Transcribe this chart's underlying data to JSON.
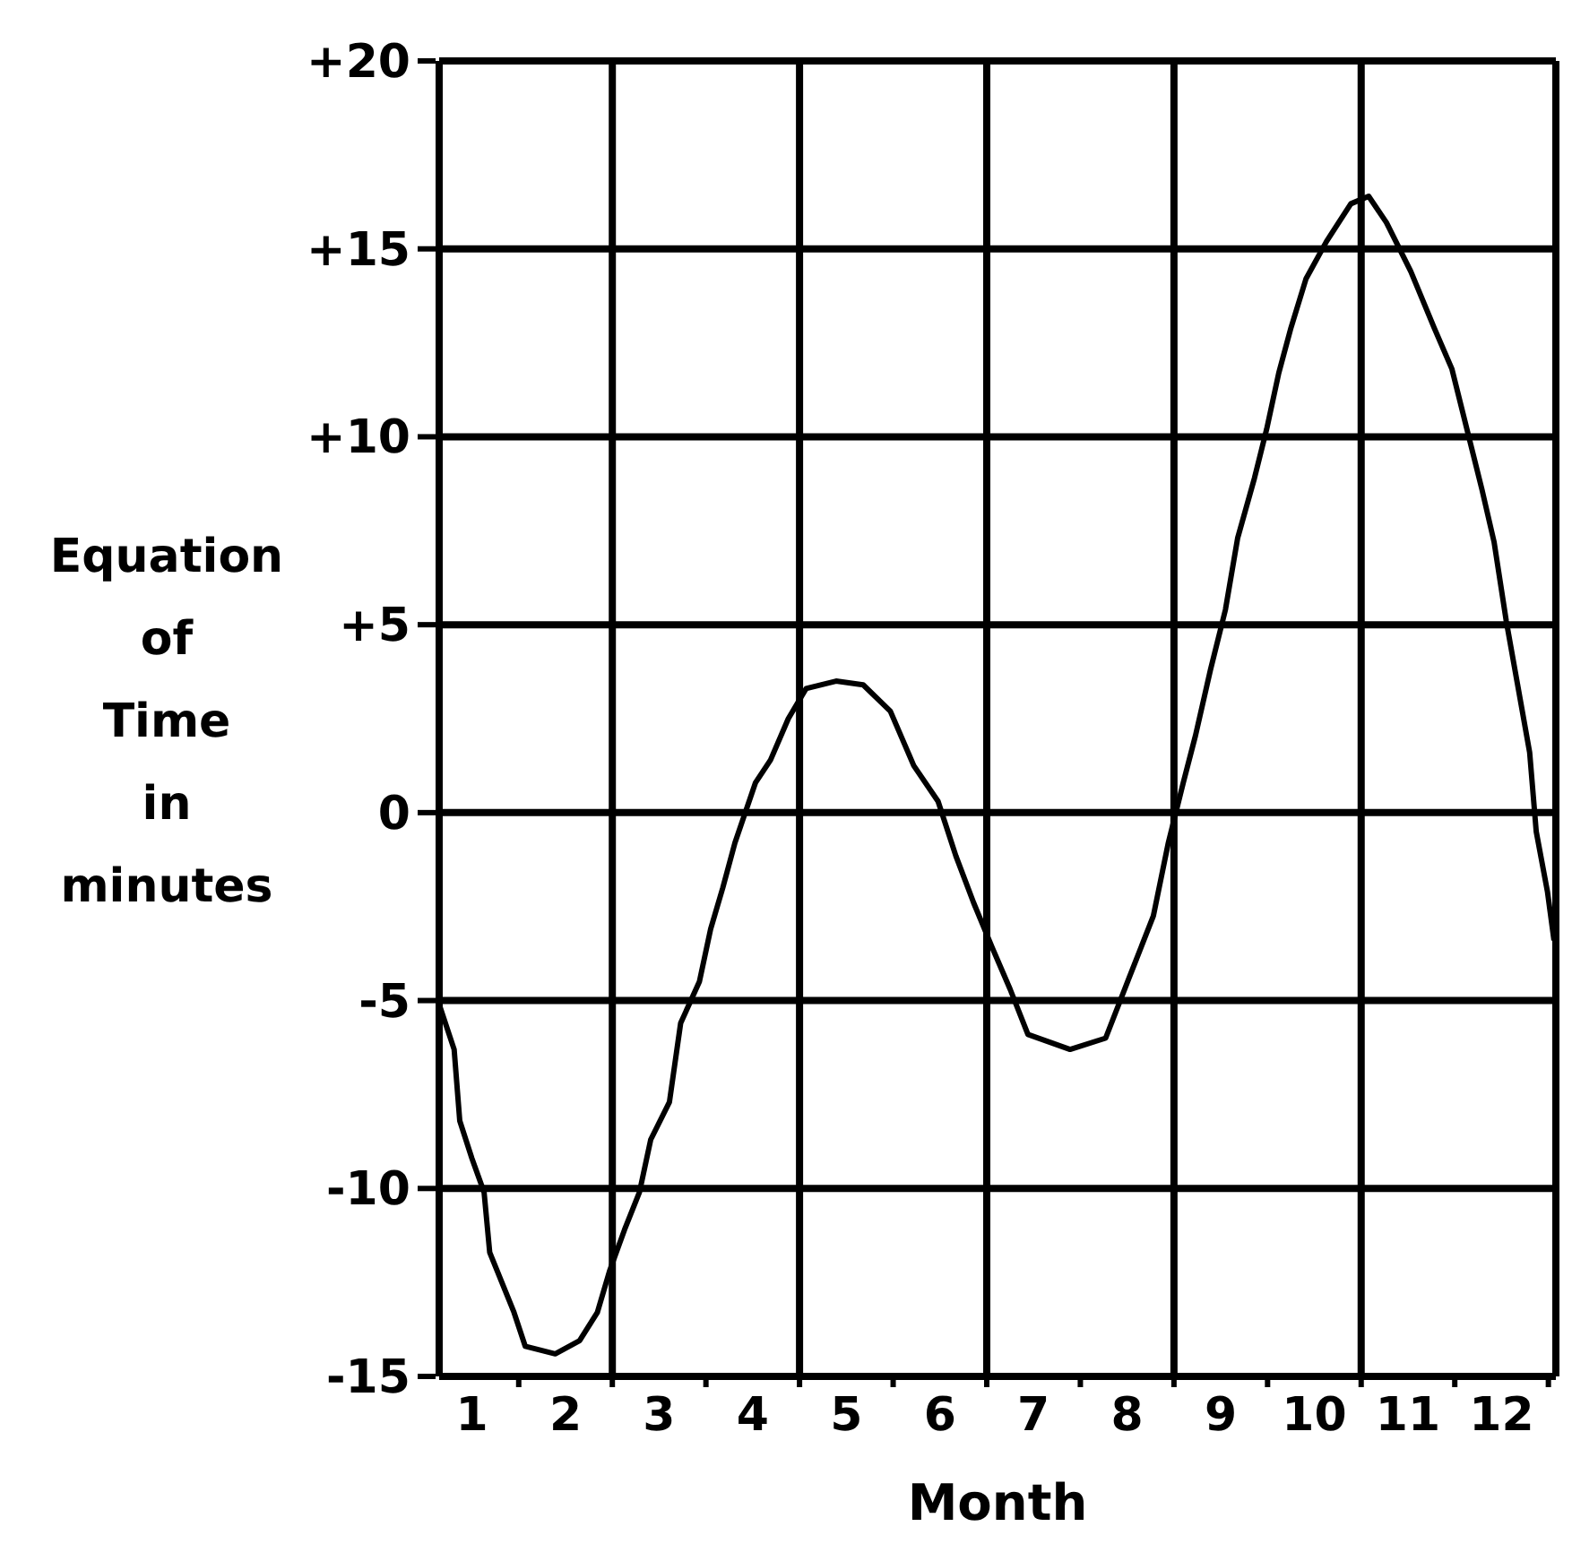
{
  "chart_data": {
    "type": "line",
    "xlabel": "Month",
    "ylabel": "Equation of Time in minutes",
    "x": [
      0.15,
      0.31,
      0.37,
      0.5,
      0.63,
      0.69,
      0.82,
      0.95,
      1.07,
      1.39,
      1.65,
      1.84,
      1.97,
      2.13,
      2.29,
      2.41,
      2.61,
      2.73,
      2.93,
      3.05,
      3.18,
      3.31,
      3.53,
      3.69,
      3.88,
      4.07,
      4.39,
      4.68,
      4.97,
      5.22,
      5.48,
      5.67,
      5.86,
      6.06,
      6.25,
      6.44,
      6.89,
      7.27,
      7.52,
      7.78,
      7.94,
      8.1,
      8.23,
      8.39,
      8.55,
      8.68,
      8.86,
      8.99,
      9.12,
      9.25,
      9.41,
      9.63,
      9.89,
      10.08,
      10.27,
      10.53,
      10.78,
      10.97,
      11.1,
      11.29,
      11.42,
      11.55,
      11.8,
      11.87,
      11.99,
      12.06
    ],
    "series": [
      {
        "color": "#000000",
        "values": [
          -5.1,
          -6.3,
          -8.2,
          -9.2,
          -10.1,
          -11.7,
          -12.5,
          -13.3,
          -14.2,
          -14.4,
          -14.05,
          -13.3,
          -12.2,
          -11.1,
          -10.1,
          -8.7,
          -7.7,
          -5.6,
          -4.5,
          -3.1,
          -2.0,
          -0.8,
          0.8,
          1.4,
          2.5,
          3.3,
          3.5,
          3.4,
          2.7,
          1.25,
          0.3,
          -1.15,
          -2.4,
          -3.6,
          -4.7,
          -5.9,
          -6.3,
          -6.0,
          -4.4,
          -2.75,
          -0.8,
          0.8,
          2.05,
          3.8,
          5.4,
          7.3,
          8.9,
          10.2,
          11.7,
          12.9,
          14.2,
          15.2,
          16.2,
          16.4,
          15.7,
          14.4,
          12.9,
          11.8,
          10.5,
          8.6,
          7.2,
          5.1,
          1.6,
          -0.5,
          -2.1,
          -3.4
        ]
      }
    ],
    "xlim": [
      0.15,
      12.08
    ],
    "xticks": [
      {
        "value": 1,
        "label": null
      },
      {
        "value": 2,
        "label": null
      },
      {
        "value": 3,
        "label": null
      },
      {
        "value": 4,
        "label": null
      },
      {
        "value": 5,
        "label": null
      },
      {
        "value": 6,
        "label": null
      },
      {
        "value": 7,
        "label": null
      },
      {
        "value": 8,
        "label": null
      },
      {
        "value": 9,
        "label": null
      },
      {
        "value": 10,
        "label": null
      },
      {
        "value": 11,
        "label": null
      },
      {
        "value": 12,
        "label": null
      },
      {
        "value": 0.5,
        "label": "1"
      },
      {
        "value": 1.5,
        "label": "2"
      },
      {
        "value": 2.5,
        "label": "3"
      },
      {
        "value": 3.5,
        "label": "4"
      },
      {
        "value": 4.5,
        "label": "5"
      },
      {
        "value": 5.5,
        "label": "6"
      },
      {
        "value": 6.5,
        "label": "7"
      },
      {
        "value": 7.5,
        "label": "8"
      },
      {
        "value": 8.5,
        "label": "9"
      },
      {
        "value": 9.5,
        "label": "10"
      },
      {
        "value": 10.5,
        "label": "11"
      },
      {
        "value": 11.5,
        "label": "12"
      }
    ],
    "ylim": [
      -15,
      20
    ],
    "yticks": [
      {
        "value": 20,
        "label": "+20"
      },
      {
        "value": 15,
        "label": "+15"
      },
      {
        "value": 10,
        "label": "+10"
      },
      {
        "value": 5,
        "label": "+5"
      },
      0,
      -5,
      -10,
      -15
    ],
    "grid": "y",
    "ref_lines": [
      {
        "axis": "x",
        "value": 2,
        "color": "#000000"
      },
      {
        "axis": "x",
        "value": 4,
        "color": "#000000"
      },
      {
        "axis": "x",
        "value": 6,
        "color": "#000000"
      },
      {
        "axis": "x",
        "value": 8,
        "color": "#000000"
      },
      {
        "axis": "x",
        "value": 10,
        "color": "#000000"
      }
    ],
    "marker": "none",
    "line_style": "solid"
  }
}
